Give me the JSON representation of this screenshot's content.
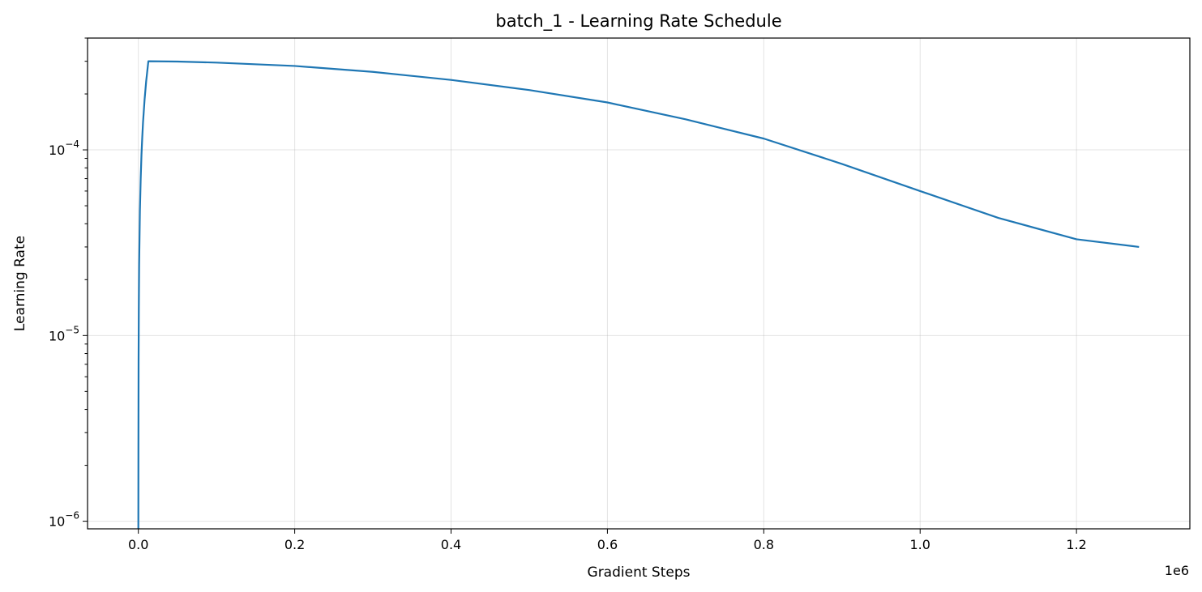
{
  "chart_data": {
    "type": "line",
    "title": "batch_1 - Learning Rate Schedule",
    "xlabel": "Gradient Steps",
    "ylabel": "Learning Rate",
    "x_offset_label": "1e6",
    "xlim": [
      -65000,
      1345000
    ],
    "ylim": [
      9.1e-07,
      0.0004
    ],
    "yscale": "log",
    "grid": true,
    "color": "#1f77b4",
    "x_ticks": [
      {
        "value": 0,
        "label": "0.0"
      },
      {
        "value": 200000,
        "label": "0.2"
      },
      {
        "value": 400000,
        "label": "0.4"
      },
      {
        "value": 600000,
        "label": "0.6"
      },
      {
        "value": 800000,
        "label": "0.8"
      },
      {
        "value": 1000000,
        "label": "1.0"
      },
      {
        "value": 1200000,
        "label": "1.2"
      }
    ],
    "y_ticks": [
      {
        "value": 1e-06,
        "base": "10",
        "exp": "−6"
      },
      {
        "value": 1e-05,
        "base": "10",
        "exp": "−5"
      },
      {
        "value": 0.0001,
        "base": "10",
        "exp": "−4"
      }
    ],
    "series": [
      {
        "x": [
          0,
          100,
          300,
          600,
          1000,
          2000,
          3000,
          4000,
          5000,
          6000,
          8000,
          10000,
          12800,
          50000,
          100000,
          200000,
          300000,
          400000,
          500000,
          600000,
          700000,
          800000,
          900000,
          1000000,
          1100000,
          1200000,
          1280000
        ],
        "y": [
          9.1e-07,
          2.4e-06,
          7.2e-06,
          1.4e-05,
          2.4e-05,
          4.7e-05,
          7e-05,
          9.4e-05,
          0.000117,
          0.000141,
          0.000187,
          0.000234,
          0.0003,
          0.000299,
          0.000295,
          0.000283,
          0.000263,
          0.000238,
          0.00021,
          0.00018,
          0.000146,
          0.000115,
          8.4e-05,
          6e-05,
          4.3e-05,
          3.3e-05,
          3e-05
        ]
      }
    ]
  }
}
